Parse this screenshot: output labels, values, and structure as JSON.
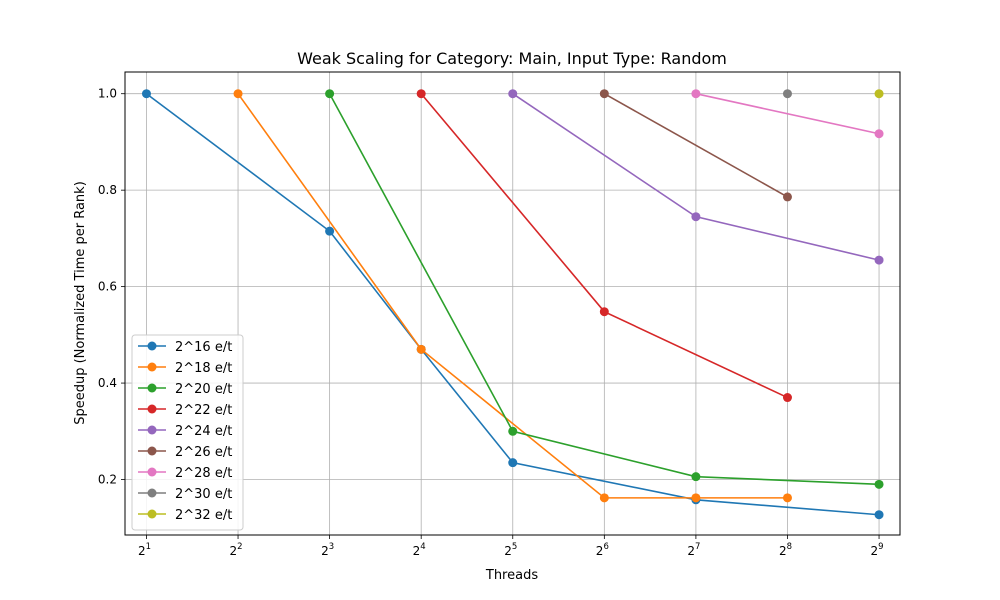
{
  "chart_data": {
    "type": "line",
    "title": "Weak Scaling for Category: Main, Input Type: Random",
    "xlabel": "Threads",
    "ylabel": "Speedup (Normalized Time per Rank)",
    "x_scale": "log2",
    "x_ticks": [
      {
        "base": "2",
        "exp": "1",
        "value": 2
      },
      {
        "base": "2",
        "exp": "2",
        "value": 4
      },
      {
        "base": "2",
        "exp": "3",
        "value": 8
      },
      {
        "base": "2",
        "exp": "4",
        "value": 16
      },
      {
        "base": "2",
        "exp": "5",
        "value": 32
      },
      {
        "base": "2",
        "exp": "6",
        "value": 64
      },
      {
        "base": "2",
        "exp": "7",
        "value": 128
      },
      {
        "base": "2",
        "exp": "8",
        "value": 256
      },
      {
        "base": "2",
        "exp": "9",
        "value": 512
      }
    ],
    "y_ticks": [
      "0.2",
      "0.4",
      "0.6",
      "0.8",
      "1.0"
    ],
    "xlim": [
      1.7,
      600
    ],
    "ylim": [
      0.085,
      1.045
    ],
    "grid": true,
    "legend_position": "lower-left",
    "series": [
      {
        "name": "2^16 e/t",
        "color": "#1f77b4",
        "x": [
          2,
          8,
          16,
          32,
          128,
          512
        ],
        "y": [
          1.0,
          0.715,
          0.47,
          0.235,
          0.158,
          0.127
        ]
      },
      {
        "name": "2^18 e/t",
        "color": "#ff7f0e",
        "x": [
          4,
          16,
          64,
          128,
          256
        ],
        "y": [
          1.0,
          0.47,
          0.162,
          0.162,
          0.162
        ]
      },
      {
        "name": "2^20 e/t",
        "color": "#2ca02c",
        "x": [
          8,
          32,
          128,
          512
        ],
        "y": [
          1.0,
          0.3,
          0.206,
          0.19
        ]
      },
      {
        "name": "2^22 e/t",
        "color": "#d62728",
        "x": [
          16,
          64,
          256
        ],
        "y": [
          1.0,
          0.548,
          0.37
        ]
      },
      {
        "name": "2^24 e/t",
        "color": "#9467bd",
        "x": [
          32,
          128,
          512
        ],
        "y": [
          1.0,
          0.745,
          0.655
        ]
      },
      {
        "name": "2^26 e/t",
        "color": "#8c564b",
        "x": [
          64,
          256
        ],
        "y": [
          1.0,
          0.786
        ]
      },
      {
        "name": "2^28 e/t",
        "color": "#e377c2",
        "x": [
          128,
          512
        ],
        "y": [
          1.0,
          0.917
        ]
      },
      {
        "name": "2^30 e/t",
        "color": "#7f7f7f",
        "x": [
          256
        ],
        "y": [
          1.0
        ]
      },
      {
        "name": "2^32 e/t",
        "color": "#bcbd22",
        "x": [
          512
        ],
        "y": [
          1.0
        ]
      }
    ]
  }
}
